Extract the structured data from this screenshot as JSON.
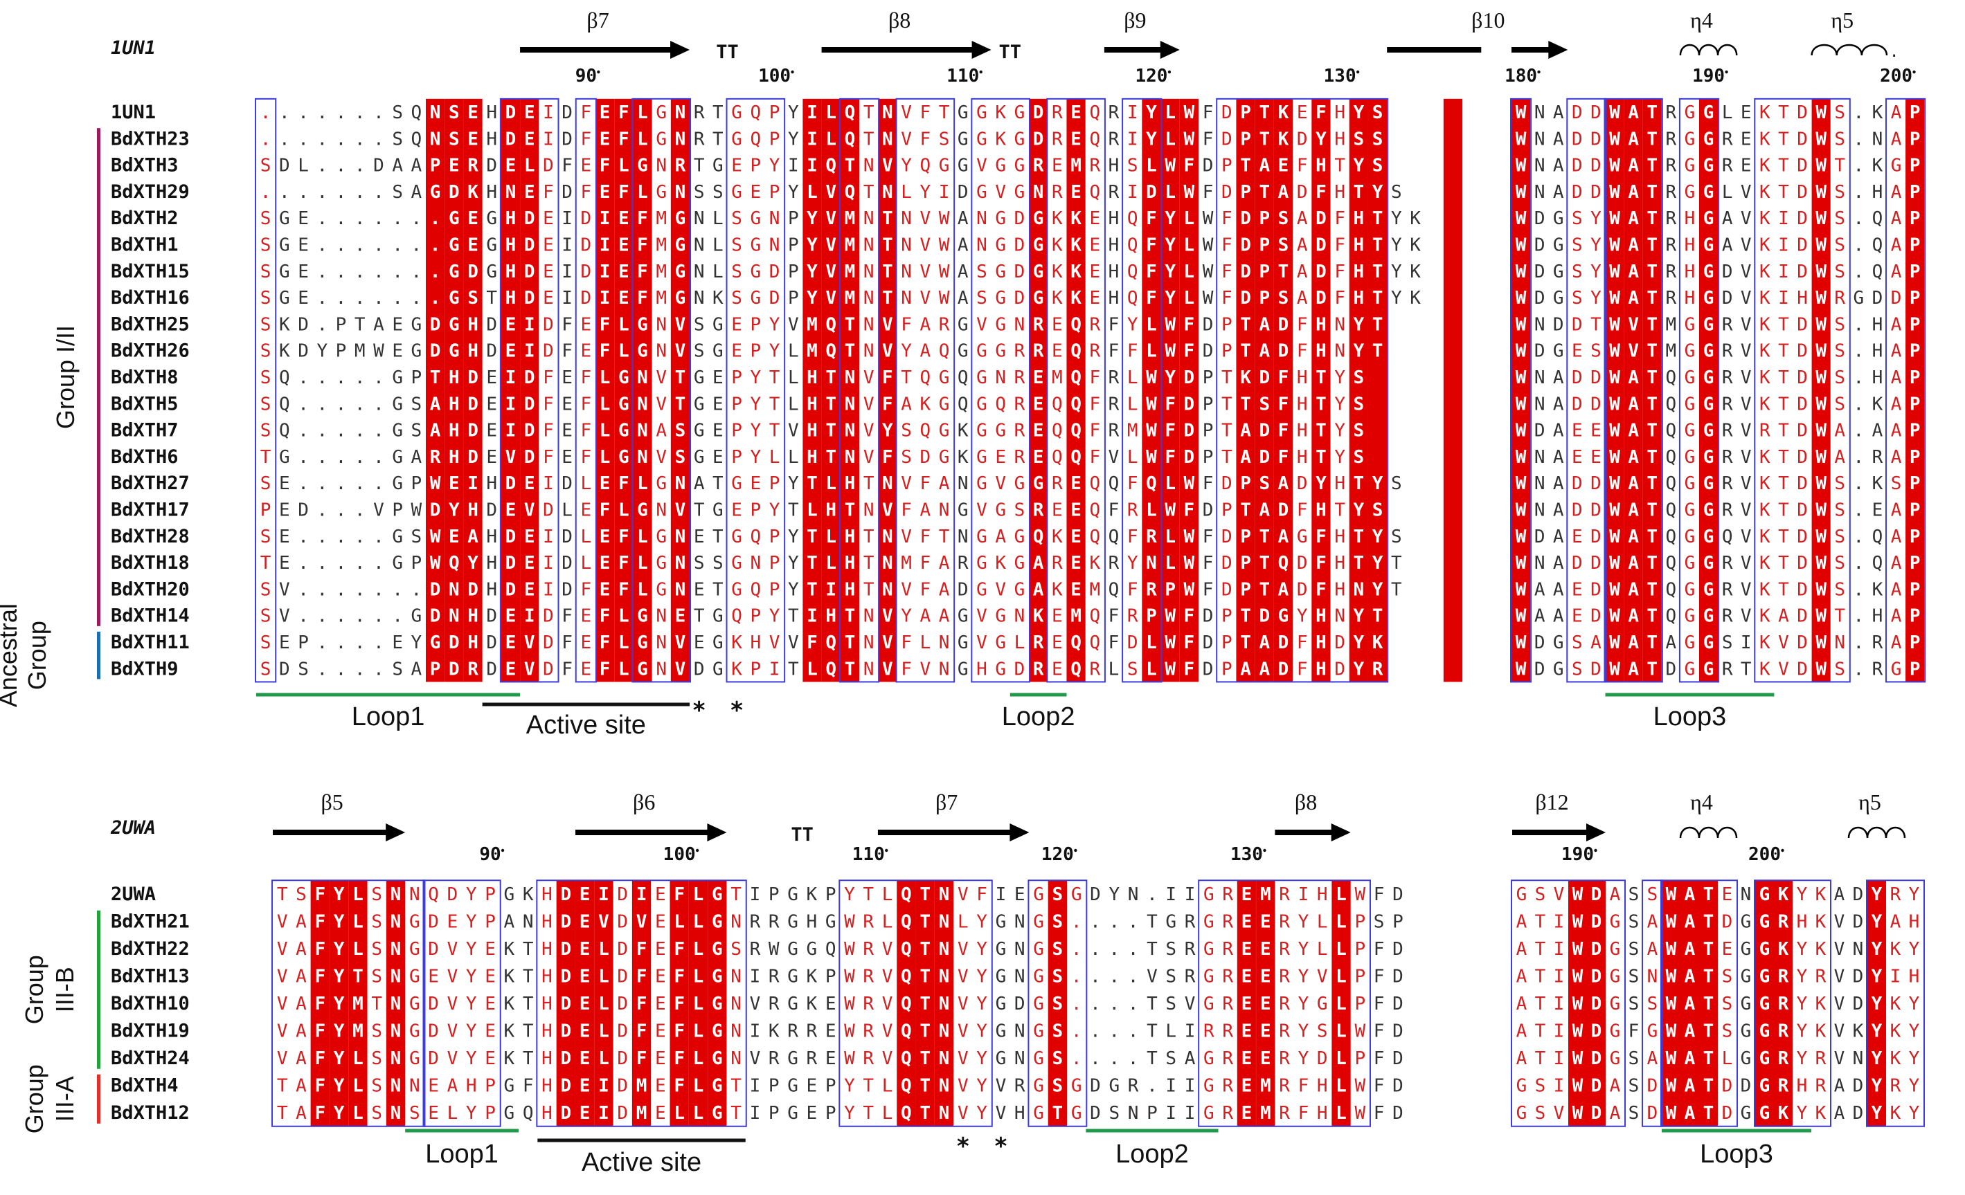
{
  "colors": {
    "identity_bg": "#e00000",
    "similar_text": "#d42020",
    "box": "#3b3be0",
    "loop_line": "#1f9a4a",
    "active_line": "#111111",
    "group_I_II": "#9c1a5c",
    "group_ancestral": "#1a6fb0",
    "group_IIIB": "#21a33a",
    "group_IIIA": "#e0302a"
  },
  "panels": [
    {
      "id": "top",
      "template": "1UN1",
      "blocks": [
        {
          "id": "tl",
          "ruler": [
            {
              "col": 17,
              "label": "90"
            },
            {
              "col": 27,
              "label": "100"
            },
            {
              "col": 37,
              "label": "110"
            },
            {
              "col": 47,
              "label": "120"
            },
            {
              "col": 57,
              "label": "130"
            }
          ],
          "ss": [
            {
              "type": "arrow",
              "label": "β7",
              "c1": 14,
              "c2": 22
            },
            {
              "type": "turn",
              "label": "TT",
              "c1": 24,
              "c2": 25
            },
            {
              "type": "arrow",
              "label": "β8",
              "c1": 30,
              "c2": 38
            },
            {
              "type": "turn",
              "label": "TT",
              "c1": 39,
              "c2": 40
            },
            {
              "type": "arrow",
              "label": "β9",
              "c1": 45,
              "c2": 48
            },
            {
              "type": "line",
              "label": "β10",
              "c1": 60,
              "c2": 64
            }
          ],
          "seqs": [
            ".......SQNSEHDEIDFEFLGNRTGQPYILQTNVFTGGKGDREQRIYLWFDPTKEFHYS",
            ".......SQNSEHDEIDFEFLGNRTGQPYILQTNVFSGGKGDREQRIYLWFDPTKDYHSS",
            "SDL...DAAPERDELDFEFLGNRTGEPYIIQTNVYQGGVGGREMRHSLWFDPTAEFHTYS",
            ".......SAGDKHNEFDFEFLGNSSGEPYLVQTNLYIDGVGNREQRIDLWFDPTADFHTYS",
            "SGE.......GEGHDEIDIEFMGNLSGNPYVMNTNVWANGDGKKEHQFYLWFDPSADFHTYK",
            "SGE.......GEGHDEIDIEFMGNLSGNPYVMNTNVWANGDGKKEHQFYLWFDPSADFHTYK",
            "SGE.......GDGHDEIDIEFMGNLSGDPYVMNTNVWASGDGKKEHQFYLWFDPTADFHTYK",
            "SGE.......GSTHDEIDIEFMGNKSGDPYVMNTNVWASGDGKKEHQFYLWFDPSADFHTYK",
            "SKD.PTAEGDGHDEIDFEFLGNVSGEPYVMQTNVFARGVGNREQRFYLWFDPTADFHNYT",
            "SKDYPMWEGDGHDEIDFEFLGNVSGEPYLMQTNVYAQGGGRREQRFFLWFDPTADFHNYT",
            "SQ.....GPTHDEIDFEFLGNVTGEPYTLHTNVFTQGQGNREMQFRLWYDPTKDFHTYS",
            "SQ.....GSAHDEIDFEFLGNVTGEPYTLHTNVFAKGQGQREQQFRLWFDPTTSFHTYS",
            "SQ.....GSAHDEIDFEFLGNASGEPYTVHTNVYSQGKGGREQQFRMWFDPTADFHTYS",
            "TG.....GARHDEVDFEFLGNVSGEPYLLHTNVFSDGKGEREQQFVLWFDPTADFHTYS",
            "SE.....GPWEIHDEIDLEFLGNATGEPYTLHTNVFANGVGGREQQFQLWFDPSADYHTYS",
            "PED...VPWDYHDEVDLEFLGNVTGEPYTLHTNVFANGVGSREEQFRLWFDPTADFHTYS",
            "SE.....GSWEAHDEIDLEFLGNETGQPYTLHTNVFTNGAGQKEQQFRLWFDPTAGFHTYS",
            "TE.....GPWQYHDEIDLEFLGNSSGNPYTLHTNMFARGKGAREKRYNLWFDPTQDFHTYT",
            "SV.......DNDHDEIDFEFLGNETGQPYTIHTNVFADGVGAKEMQFRPWFDPTADFHNYT",
            "SV......GDNHDEIDFEFLGNETGQPYTIHTNVYAAGVGNKEMQFRPWFDPTDGYHNYT",
            "SEP....EYGDHDEVDFEFLGNVEGKHVVFQTNVFLNGVGLREQQFDLWFDPTADFHDYK",
            "SDS....SAPDRDEVDFEFLGNVDGKPITLQTNVFVNGHGDREQRLSLWFDPAADFHDYR"
          ],
          "red": [
            9,
            10,
            11,
            13,
            14,
            18,
            19,
            20,
            22,
            29,
            30,
            31,
            33,
            41,
            43,
            47,
            48,
            49,
            52,
            53,
            54,
            56,
            58,
            59,
            63
          ],
          "boxes": [
            [
              0,
              0
            ],
            [
              13,
              15
            ],
            [
              17,
              17
            ],
            [
              20,
              22
            ],
            [
              25,
              27
            ],
            [
              31,
              32
            ],
            [
              34,
              36
            ],
            [
              38,
              40
            ],
            [
              42,
              44
            ],
            [
              46,
              47
            ],
            [
              51,
              59
            ]
          ],
          "loops": [
            {
              "label": "Loop1",
              "c1": 0,
              "c2": 13,
              "kind": "loop"
            },
            {
              "label": "Active site",
              "c1": 12,
              "c2": 22,
              "kind": "active"
            },
            {
              "label": "Loop2",
              "c1": 40,
              "c2": 42,
              "kind": "loop"
            }
          ],
          "stars": [
            23,
            25
          ]
        },
        {
          "id": "tr",
          "ruler": [
            {
              "col": 0,
              "label": "180"
            },
            {
              "col": 10,
              "label": "190"
            },
            {
              "col": 20,
              "label": "200"
            }
          ],
          "ss": [
            {
              "type": "arrow",
              "label": "",
              "c1": 0,
              "c2": 2
            },
            {
              "type": "helix",
              "label": "η4",
              "c1": 9,
              "c2": 11
            },
            {
              "type": "helix2",
              "label": "η5",
              "c1": 16,
              "c2": 19
            }
          ],
          "seqs": [
            "WNADDWATRGGLEKTDWS.KAP",
            "WNADDWATRGGREKTDWS.NAP",
            "WNADDWATRGGREKTDWT.KGP",
            "WNADDWATRGGLVKTDWS.HAP",
            "WDGSYWATRHGAVKIDWS.QAP",
            "WDGSYWATRHGAVKIDWS.QAP",
            "WDGSYWATRHGDVKIDWS.QAP",
            "WDGSYWATRHGDVKIHWRGDDP",
            "WNDDTWVTMGGRVKTDWS.HAP",
            "WDGESWVTMGGRVKTDWS.HAP",
            "WNADDWATQGGRVKTDWS.HAP",
            "WNADDWATQGGRVKTDWS.KAP",
            "WDAEEWATQGGRVRTDWA.AAP",
            "WNAEEWATQGGRVKTDWA.RAP",
            "WNADDWATQGGRVKTDWS.KSP",
            "WNADDWATQGGRVKTDWS.EAP",
            "WDAEDWATQGGQVKTDWS.QAP",
            "WNADDWATQGGRVKTDWS.QAP",
            "WAAEDWATQGGRVKTDWS.KAP",
            "WAAEDWATQGGRVKADWT.HAP",
            "WDGSAWATAGGSIKVDWN.RAP",
            "WDGSDWATDGGRTKVDWS.RGP"
          ],
          "red": [
            0,
            5,
            6,
            7,
            10,
            16,
            21
          ],
          "boxes": [
            [
              0,
              0
            ],
            [
              3,
              4
            ],
            [
              5,
              7
            ],
            [
              9,
              10
            ],
            [
              13,
              17
            ],
            [
              20,
              21
            ]
          ],
          "loops": [
            {
              "label": "Loop3",
              "c1": 5,
              "c2": 13,
              "kind": "loop"
            }
          ],
          "stars": []
        }
      ],
      "names": [
        "1UN1",
        "BdXTH23",
        "BdXTH3",
        "BdXTH29",
        "BdXTH2",
        "BdXTH1",
        "BdXTH15",
        "BdXTH16",
        "BdXTH25",
        "BdXTH26",
        "BdXTH8",
        "BdXTH5",
        "BdXTH7",
        "BdXTH6",
        "BdXTH27",
        "BdXTH17",
        "BdXTH28",
        "BdXTH18",
        "BdXTH20",
        "BdXTH14",
        "BdXTH11",
        "BdXTH9"
      ],
      "groups": [
        {
          "label": "Group I/II",
          "r1": 1,
          "r2": 19,
          "color": "group_I_II"
        },
        {
          "label": "Ancestral Group",
          "r1": 20,
          "r2": 21,
          "color": "group_ancestral"
        }
      ]
    },
    {
      "id": "bottom",
      "template": "2UWA",
      "blocks": [
        {
          "id": "bl",
          "ruler": [
            {
              "col": 11,
              "label": "90"
            },
            {
              "col": 21,
              "label": "100"
            },
            {
              "col": 31,
              "label": "110"
            },
            {
              "col": 41,
              "label": "120"
            },
            {
              "col": 51,
              "label": "130"
            }
          ],
          "ss": [
            {
              "type": "arrow",
              "label": "β5",
              "c1": 0,
              "c2": 6
            },
            {
              "type": "arrow",
              "label": "β6",
              "c1": 16,
              "c2": 23
            },
            {
              "type": "turn",
              "label": "TT",
              "c1": 27,
              "c2": 28
            },
            {
              "type": "arrow",
              "label": "β7",
              "c1": 32,
              "c2": 39
            },
            {
              "type": "arrow",
              "label": "β8",
              "c1": 53,
              "c2": 56
            }
          ],
          "seqs": [
            "TSFYLSNNQDYPGKHDEIDIEFLGTIPGKPYTLQTNVFIEGSGDYN.IIGREMRIHLWFD",
            "VAFYLSNGDEYPANHDEVDVELLGNRRGHGWRLQTNLYGNGS....TGRGREERYLLPSP",
            "VAFYLSNGDVYEKTHDELDFEFLGSRWGGQWRVQTNVYGNGS....TSRGREERYLLPFD",
            "VAFYTSNGEVYEKTHDELDFEFLGNIRGKPWRVQTNVYGNGS....VSRGREERYVLPFD",
            "VAFYMTNGDVYEKTHDELDFEFLGNVRGKEWRVQTNVYGDGS....TSVGREERYGLPFD",
            "VAFYMSNGDVYEKTHDELDFEFLGNIKRREWRVQTNVYGNGS....TLIRREERYSLWFD",
            "VAFYLSNGDVYEKTHDELDFEFLGNVRGREWRVQTNVYGNGS....TSAGREERYDLPFD",
            "TAFYLSNNEAHPGFHDEIDMEFLGTIPGEPYTLQTNVYVRGSGDGR.IIGREMRFHLWFD",
            "TAFYLSNSELYPGQHDEIDMELLGTIPGEPYTLQTNVYVHGTGDSNPIIGREMRFHLWFD"
          ],
          "red": [
            2,
            3,
            4,
            6,
            15,
            16,
            17,
            19,
            21,
            22,
            23,
            33,
            34,
            35,
            41,
            51,
            52,
            56
          ],
          "boxes": [
            [
              0,
              7
            ],
            [
              8,
              11
            ],
            [
              14,
              24
            ],
            [
              30,
              37
            ],
            [
              40,
              42
            ],
            [
              49,
              57
            ]
          ],
          "loops": [
            {
              "label": "Loop1",
              "c1": 7,
              "c2": 12,
              "kind": "loop"
            },
            {
              "label": "Active site",
              "c1": 14,
              "c2": 24,
              "kind": "active"
            },
            {
              "label": "Loop2",
              "c1": 43,
              "c2": 49,
              "kind": "loop"
            }
          ],
          "stars": [
            36,
            38
          ]
        },
        {
          "id": "br",
          "ruler": [
            {
              "col": 3,
              "label": "190"
            },
            {
              "col": 13,
              "label": "200"
            }
          ],
          "ss": [
            {
              "type": "arrow",
              "label": "β12",
              "c1": 0,
              "c2": 4
            },
            {
              "type": "helix",
              "label": "η4",
              "c1": 9,
              "c2": 11
            },
            {
              "type": "helix",
              "label": "η5",
              "c1": 18,
              "c2": 20
            }
          ],
          "seqs": [
            "GSVWDASSWATENGKYKADYRY",
            "ATIWDGSAWATDGGRHKVDYAH",
            "ATIWDGSAWATEGGKYKVNYKY",
            "ATIWDGSNWATSGGRYRVDYIH",
            "ATIWDGSSWATSGGRYKVDYKY",
            "ATIWDGFGWATSGGRYKVKYKY",
            "ATIWDGSAWATLGGRYRVNYKY",
            "GSIWDASDWATDDGRHRADYRY",
            "GSVWDASDWATDGGKYKADYKY"
          ],
          "red": [
            3,
            4,
            8,
            9,
            10,
            13,
            14,
            19
          ],
          "boxes": [
            [
              0,
              5
            ],
            [
              7,
              7
            ],
            [
              8,
              11
            ],
            [
              13,
              16
            ],
            [
              19,
              21
            ]
          ],
          "loops": [
            {
              "label": "Loop3",
              "c1": 8,
              "c2": 15,
              "kind": "loop"
            }
          ],
          "stars": []
        }
      ],
      "names": [
        "2UWA",
        "BdXTH21",
        "BdXTH22",
        "BdXTH13",
        "BdXTH10",
        "BdXTH19",
        "BdXTH24",
        "BdXTH4",
        "BdXTH12"
      ],
      "groups": [
        {
          "label": "Group III-B",
          "r1": 1,
          "r2": 6,
          "color": "group_IIIB"
        },
        {
          "label": "Group III-A",
          "r1": 7,
          "r2": 8,
          "color": "group_IIIA"
        }
      ]
    }
  ]
}
